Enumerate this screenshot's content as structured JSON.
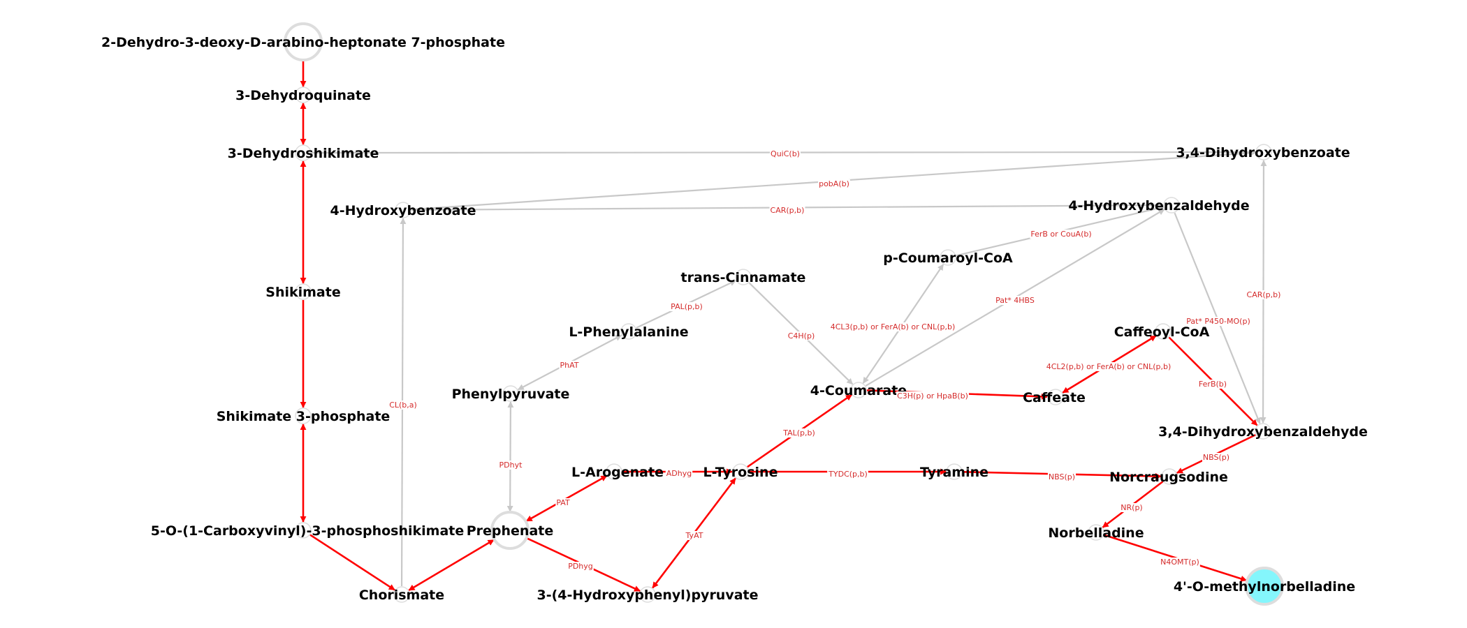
{
  "colors": {
    "active_edge": "#ff0000",
    "inactive_edge": "#c8c8c8",
    "node_stroke": "#dddddd",
    "node_fill": "#ffffff",
    "target_fill": "#84f6fc",
    "edge_label": "#d42a2a"
  },
  "nodes": [
    {
      "id": "dahp",
      "label": "2-Dehydro-3-deoxy-D-arabino-heptonate 7-phosphate"
    },
    {
      "id": "dhq",
      "label": "3-Dehydroquinate"
    },
    {
      "id": "dhs",
      "label": "3-Dehydroshikimate"
    },
    {
      "id": "shik",
      "label": "Shikimate"
    },
    {
      "id": "s3p",
      "label": "Shikimate 3-phosphate"
    },
    {
      "id": "epsp",
      "label": "5-O-(1-Carboxyvinyl)-3-phosphoshikimate"
    },
    {
      "id": "chor",
      "label": "Chorismate"
    },
    {
      "id": "preph",
      "label": "Prephenate"
    },
    {
      "id": "hpp",
      "label": "3-(4-Hydroxyphenyl)pyruvate"
    },
    {
      "id": "arog",
      "label": "L-Arogenate"
    },
    {
      "id": "tyr",
      "label": "L-Tyrosine"
    },
    {
      "id": "phepyr",
      "label": "Phenylpyruvate"
    },
    {
      "id": "phe",
      "label": "L-Phenylalanine"
    },
    {
      "id": "cinn",
      "label": "trans-Cinnamate"
    },
    {
      "id": "hba",
      "label": "4-Hydroxybenzoate"
    },
    {
      "id": "coum",
      "label": "4-Coumarate"
    },
    {
      "id": "pcoa",
      "label": "p-Coumaroyl-CoA"
    },
    {
      "id": "hbald",
      "label": "4-Hydroxybenzaldehyde"
    },
    {
      "id": "dhb",
      "label": "3,4-Dihydroxybenzoate"
    },
    {
      "id": "caff",
      "label": "Caffeate"
    },
    {
      "id": "cafcoa",
      "label": "Caffeoyl-CoA"
    },
    {
      "id": "dhbald",
      "label": "3,4-Dihydroxybenzaldehyde"
    },
    {
      "id": "tyra",
      "label": "Tyramine"
    },
    {
      "id": "norc",
      "label": "Norcraugsodine"
    },
    {
      "id": "norb",
      "label": "Norbelladine"
    },
    {
      "id": "target",
      "label": "4'-O-methylnorbelladine"
    }
  ],
  "edges": [
    {
      "from": "dahp",
      "to": "dhq",
      "label": "",
      "active": true,
      "bidirectional": false
    },
    {
      "from": "dhq",
      "to": "dhs",
      "label": "",
      "active": true,
      "bidirectional": true
    },
    {
      "from": "dhs",
      "to": "shik",
      "label": "",
      "active": true,
      "bidirectional": true
    },
    {
      "from": "shik",
      "to": "s3p",
      "label": "",
      "active": true,
      "bidirectional": false
    },
    {
      "from": "s3p",
      "to": "epsp",
      "label": "",
      "active": true,
      "bidirectional": true
    },
    {
      "from": "epsp",
      "to": "chor",
      "label": "",
      "active": true,
      "bidirectional": false
    },
    {
      "from": "chor",
      "to": "preph",
      "label": "",
      "active": true,
      "bidirectional": true
    },
    {
      "from": "preph",
      "to": "hpp",
      "label": "PDhyg",
      "active": true,
      "bidirectional": false
    },
    {
      "from": "preph",
      "to": "arog",
      "label": "PAT",
      "active": true,
      "bidirectional": true
    },
    {
      "from": "arog",
      "to": "tyr",
      "label": "ADhyg",
      "active": true,
      "bidirectional": false
    },
    {
      "from": "hpp",
      "to": "tyr",
      "label": "TyAT",
      "active": true,
      "bidirectional": true
    },
    {
      "from": "tyr",
      "to": "coum",
      "label": "TAL(p,b)",
      "active": true,
      "bidirectional": false
    },
    {
      "from": "tyr",
      "to": "tyra",
      "label": "TYDC(p,b)",
      "active": true,
      "bidirectional": false
    },
    {
      "from": "tyra",
      "to": "norc",
      "label": "NBS(p)",
      "active": true,
      "bidirectional": false
    },
    {
      "from": "coum",
      "to": "caff",
      "label": "C3H(p) or HpaB(b)",
      "active": true,
      "bidirectional": false
    },
    {
      "from": "caff",
      "to": "cafcoa",
      "label": "4CL2(p,b) or FerA(b) or CNL(p,b)",
      "active": true,
      "bidirectional": true
    },
    {
      "from": "cafcoa",
      "to": "dhbald",
      "label": "FerB(b)",
      "active": true,
      "bidirectional": false
    },
    {
      "from": "dhbald",
      "to": "norc",
      "label": "NBS(p)",
      "active": true,
      "bidirectional": false
    },
    {
      "from": "norc",
      "to": "norb",
      "label": "NR(p)",
      "active": true,
      "bidirectional": false
    },
    {
      "from": "norb",
      "to": "target",
      "label": "N4OMT(p)",
      "active": true,
      "bidirectional": false
    },
    {
      "from": "dhs",
      "to": "dhb",
      "label": "QuiC(b)",
      "active": false,
      "bidirectional": false
    },
    {
      "from": "hba",
      "to": "dhb",
      "label": "pobA(b)",
      "active": false,
      "bidirectional": false
    },
    {
      "from": "hba",
      "to": "hbald",
      "label": "CAR(p,b)",
      "active": false,
      "bidirectional": false
    },
    {
      "from": "chor",
      "to": "hba",
      "label": "CL(b,a)",
      "active": false,
      "bidirectional": false
    },
    {
      "from": "preph",
      "to": "phepyr",
      "label": "PDhyt",
      "active": false,
      "bidirectional": true
    },
    {
      "from": "phepyr",
      "to": "phe",
      "label": "PhAT",
      "active": false,
      "bidirectional": true
    },
    {
      "from": "phe",
      "to": "cinn",
      "label": "PAL(p,b)",
      "active": false,
      "bidirectional": false
    },
    {
      "from": "cinn",
      "to": "coum",
      "label": "C4H(p)",
      "active": false,
      "bidirectional": false
    },
    {
      "from": "coum",
      "to": "pcoa",
      "label": "4CL3(p,b) or FerA(b) or CNL(p,b)",
      "active": false,
      "bidirectional": true
    },
    {
      "from": "pcoa",
      "to": "hbald",
      "label": "FerB or CouA(b)",
      "active": false,
      "bidirectional": false
    },
    {
      "from": "coum",
      "to": "hbald",
      "label": "Pat* 4HBS",
      "active": false,
      "bidirectional": false
    },
    {
      "from": "hbald",
      "to": "dhbald",
      "label": "Pat* P450-MO(p)",
      "active": false,
      "bidirectional": false
    },
    {
      "from": "dhb",
      "to": "dhbald",
      "label": "CAR(p,b)",
      "active": false,
      "bidirectional": true
    }
  ]
}
